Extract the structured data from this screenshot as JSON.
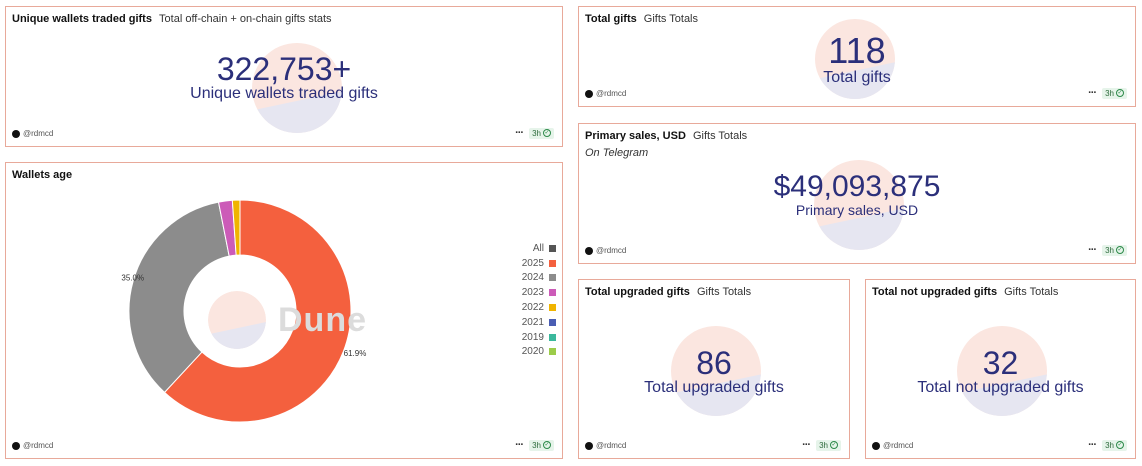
{
  "common": {
    "author": "@rdmcd",
    "more": "···",
    "age": "3h",
    "check": "✓"
  },
  "cards": {
    "unique_wallets": {
      "title": "Unique wallets traded gifts",
      "subtitle": "Total off-chain + on-chain gifts stats",
      "value": "322,753+",
      "label": "Unique wallets traded gifts"
    },
    "total_gifts": {
      "title": "Total gifts",
      "subtitle": "Gifts Totals",
      "value": "118",
      "label": "Total gifts"
    },
    "primary_sales": {
      "title": "Primary sales, USD",
      "subtitle": "Gifts Totals",
      "note": "On Telegram",
      "value": "$49,093,875",
      "label": "Primary sales, USD"
    },
    "upgraded": {
      "title": "Total upgraded gifts",
      "subtitle": "Gifts Totals",
      "value": "86",
      "label": "Total upgraded gifts"
    },
    "not_upgraded": {
      "title": "Total not upgraded gifts",
      "subtitle": "Gifts Totals",
      "value": "32",
      "label": "Total not upgraded gifts"
    }
  },
  "wallets_age": {
    "title": "Wallets age",
    "watermark": "Dune",
    "legend": [
      {
        "label": "All",
        "color": "#555555"
      },
      {
        "label": "2025",
        "color": "#f4603e"
      },
      {
        "label": "2024",
        "color": "#8c8c8c"
      },
      {
        "label": "2023",
        "color": "#cc5bb8"
      },
      {
        "label": "2022",
        "color": "#f0b400"
      },
      {
        "label": "2021",
        "color": "#4a5db3"
      },
      {
        "label": "2019",
        "color": "#3bb89c"
      },
      {
        "label": "2020",
        "color": "#9ccc4a"
      }
    ]
  },
  "chart_data": {
    "type": "pie",
    "title": "Wallets age",
    "donut": true,
    "categories": [
      "2025",
      "2024",
      "2023",
      "2022"
    ],
    "values": [
      61.9,
      35.0,
      2.0,
      1.1
    ],
    "data_labels": [
      "61.9%",
      "35.0%",
      "",
      ""
    ],
    "colors": [
      "#f4603e",
      "#8c8c8c",
      "#cc5bb8",
      "#f0b400"
    ],
    "legend_placement": "right"
  }
}
